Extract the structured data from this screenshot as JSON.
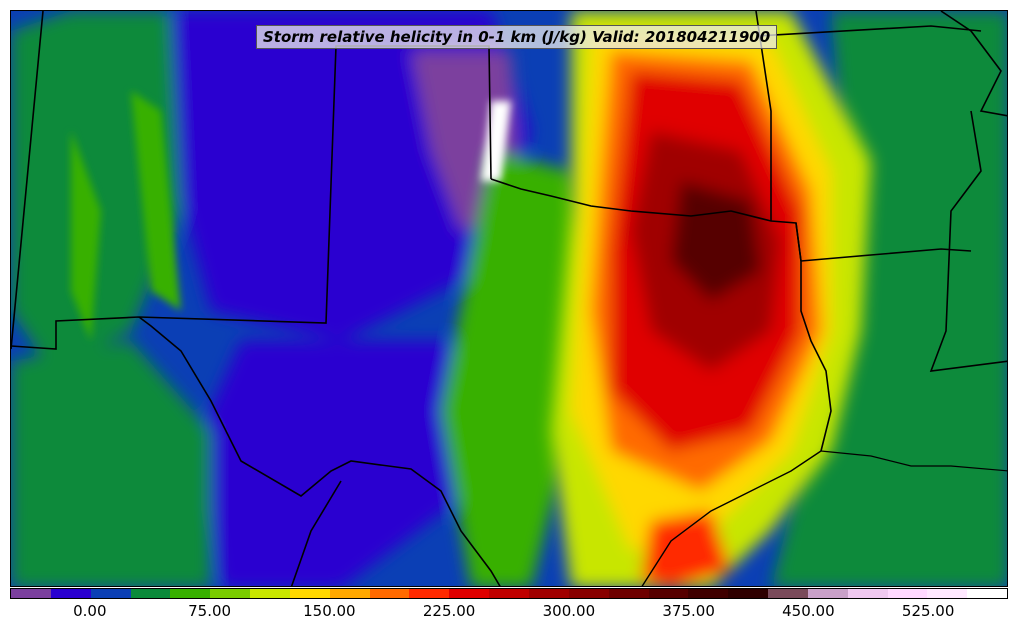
{
  "title": "Storm relative helicity in 0-1 km (J/kg) Valid: 201804211900",
  "colorbar": {
    "colors": [
      "#7b3f9e",
      "#2a00d0",
      "#0b3fb5",
      "#0a8a3a",
      "#38b000",
      "#7acc00",
      "#c8e600",
      "#ffd800",
      "#ffa800",
      "#ff6a00",
      "#ff2a00",
      "#e00000",
      "#c00000",
      "#a00000",
      "#880000",
      "#6e0000",
      "#560000",
      "#3f0000",
      "#2e0000",
      "#7a4a5a",
      "#c9a0c8",
      "#f0c8f0",
      "#ffd8ff",
      "#ffe8ff",
      "#ffffff"
    ],
    "tick_labels": [
      "0.00",
      "75.00",
      "150.00",
      "225.00",
      "300.00",
      "375.00",
      "450.00",
      "525.00"
    ],
    "tick_values": [
      0,
      75,
      150,
      225,
      300,
      375,
      450,
      525
    ],
    "min": -50,
    "max": 575
  }
}
